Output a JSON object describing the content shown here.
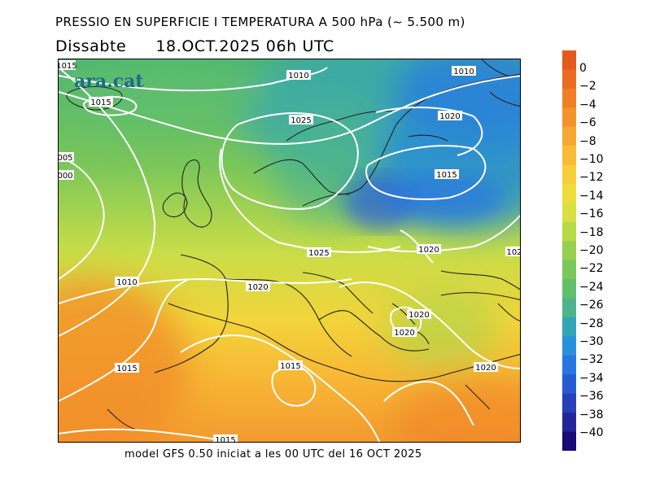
{
  "header": {
    "title": "PRESSIO EN SUPERFICIE I TEMPERATURA A 500 hPa (~ 5.500 m)",
    "day": "Dissabte",
    "datetime": "18.OCT.2025 06h UTC"
  },
  "logo": "ara.cat",
  "footer": "model GFS 0.50 iniciat a les 00 UTC del 16 OCT 2025",
  "colorbar": {
    "labels": [
      "0",
      "−2",
      "−4",
      "−6",
      "−8",
      "−10",
      "−12",
      "−14",
      "−16",
      "−18",
      "−20",
      "−22",
      "−24",
      "−26",
      "−28",
      "−30",
      "−32",
      "−34",
      "−36",
      "−38",
      "−40"
    ],
    "colors": [
      "#e25a1c",
      "#ea6b22",
      "#f07f27",
      "#f4932c",
      "#f7a832",
      "#f8bc36",
      "#f6cf3a",
      "#eedc3d",
      "#d8e043",
      "#b8d94a",
      "#97cf50",
      "#7cc75a",
      "#62bf6a",
      "#4cb58c",
      "#32a6b4",
      "#2991da",
      "#2677e2",
      "#265bd2",
      "#2640b8",
      "#23269a",
      "#1a0a78"
    ]
  },
  "isobar_labels": [
    "1010",
    "1015",
    "1010",
    "1025",
    "1020",
    "1015",
    "1025",
    "1020",
    "1020",
    "1010",
    "1015",
    "1015",
    "1020",
    "1020",
    "1020",
    "1015",
    "1015",
    "005",
    "000",
    "102"
  ]
}
